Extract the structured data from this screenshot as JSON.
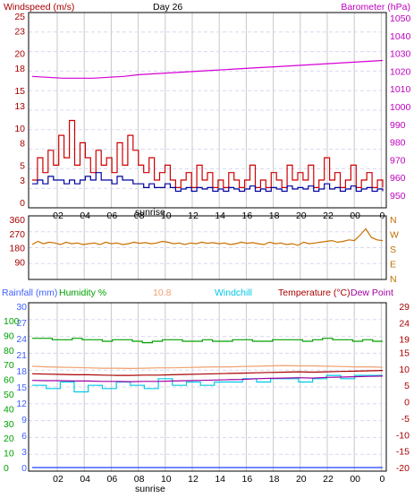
{
  "chart_data": [
    {
      "type": "line",
      "title": "Day 26",
      "left_axis": {
        "label": "Windspeed (m/s)",
        "color": "#a80000",
        "min": 0,
        "max": 25,
        "ticks": [
          0,
          3,
          5,
          8,
          10,
          13,
          15,
          18,
          20,
          23,
          25
        ]
      },
      "right_axis": {
        "label": "Barometer (hPa)",
        "color": "#c000c0",
        "min": 950,
        "max": 1050,
        "ticks": [
          950,
          960,
          970,
          980,
          990,
          1000,
          1010,
          1020,
          1030,
          1040,
          1050
        ]
      },
      "x_ticks": [
        "02",
        "04",
        "06",
        "08",
        "10",
        "12",
        "14",
        "16",
        "18",
        "20",
        "22",
        "00",
        "0"
      ],
      "x_annotation": "sunrise",
      "series": [
        {
          "color": "#cc0000",
          "values": [
            3,
            6,
            4,
            7,
            5,
            9,
            6,
            11,
            5,
            8,
            6,
            4,
            7,
            5,
            6,
            4,
            8,
            5,
            9,
            7,
            5,
            4,
            6,
            3,
            4,
            5,
            3,
            2,
            3,
            4,
            2,
            5,
            3,
            4,
            2,
            3,
            2,
            4,
            3,
            2,
            3,
            5,
            2,
            3,
            2,
            4,
            3,
            2,
            5,
            3,
            4,
            3,
            5,
            2,
            3,
            6,
            3,
            4,
            2,
            3,
            5,
            2,
            3,
            4,
            2,
            3,
            2
          ]
        },
        {
          "color": "#0000a0",
          "values": [
            2.5,
            3,
            2.5,
            3.5,
            3,
            3,
            2.5,
            3,
            2.5,
            3,
            3.5,
            3,
            4,
            3,
            3,
            2.5,
            3.5,
            3,
            3,
            2.5,
            2.5,
            2,
            2.5,
            2,
            2,
            2.5,
            2,
            1.5,
            1.8,
            2,
            1.5,
            2,
            1.8,
            2,
            1.5,
            1.8,
            1.5,
            2,
            1.8,
            1.5,
            1.8,
            2.2,
            1.5,
            1.8,
            1.5,
            2,
            1.8,
            1.5,
            2.2,
            1.8,
            2,
            1.8,
            2.2,
            1.5,
            1.8,
            2.5,
            1.8,
            2,
            1.5,
            1.8,
            2.2,
            1.5,
            1.8,
            2,
            1.5,
            1.8,
            1.5
          ]
        },
        {
          "color": "#d400d4",
          "axis": "right",
          "values": [
            1017,
            1016.5,
            1016,
            1016,
            1016,
            1016.5,
            1017,
            1018,
            1018.5,
            1019,
            1019.5,
            1020,
            1020.5,
            1021,
            1021.5,
            1022,
            1022.5,
            1023,
            1023.5,
            1024,
            1024.5,
            1025,
            1025.5,
            1026
          ]
        }
      ]
    },
    {
      "type": "line",
      "left_axis": {
        "min": 0,
        "max": 360,
        "ticks": [
          90,
          180,
          270,
          360
        ]
      },
      "right_axis": {
        "labels": [
          "N",
          "W",
          "S",
          "E",
          "N"
        ],
        "color": "#c07000"
      },
      "series": [
        {
          "color": "#c87000",
          "values": [
            200,
            220,
            205,
            215,
            210,
            200,
            215,
            205,
            210,
            200,
            205,
            210,
            200,
            215,
            205,
            210,
            200,
            205,
            215,
            208,
            212,
            205,
            210,
            220,
            215,
            205,
            210,
            200,
            210,
            205,
            215,
            208,
            212,
            205,
            210,
            200,
            205,
            215,
            208,
            212,
            205,
            200,
            215,
            205,
            210,
            200,
            205,
            195,
            215,
            205,
            210,
            215,
            220,
            225,
            215,
            220,
            230,
            225,
            260,
            300,
            245,
            230,
            225
          ]
        }
      ]
    },
    {
      "type": "line",
      "headers": [
        {
          "text": "Rainfall (mm)",
          "color": "#4060ff"
        },
        {
          "text": "Humidity %",
          "color": "#00a000"
        },
        {
          "text": "10.8",
          "color": "#f0a070"
        },
        {
          "text": "Windchill",
          "color": "#00c8e8"
        },
        {
          "text": "Temperature (°C)",
          "color": "#a80000"
        },
        {
          "text": "Dew Point",
          "color": "#a000a0"
        }
      ],
      "rain_ticks": [
        0,
        3,
        6,
        9,
        12,
        15,
        18,
        21,
        24,
        27,
        30
      ],
      "humidity_ticks": [
        0,
        10,
        20,
        30,
        40,
        50,
        60,
        70,
        80,
        90,
        100
      ],
      "temp_ticks": [
        -20,
        -15,
        -10,
        -5,
        0,
        5,
        10,
        15,
        19,
        24,
        29
      ],
      "series": [
        {
          "name": "Humidity %",
          "color": "#00a000",
          "axis": "humidity",
          "values": [
            88,
            88,
            87,
            87,
            88,
            87,
            87,
            86,
            87,
            87,
            86,
            85,
            86,
            87,
            87,
            86,
            86,
            87,
            86,
            86,
            87,
            87,
            86,
            86,
            87,
            87,
            87,
            86,
            87,
            88,
            87,
            87,
            86,
            87,
            86,
            86
          ]
        },
        {
          "color": "#f0a070",
          "axis": "temp",
          "values": [
            10.8,
            10.6,
            10.5,
            10.4,
            10.3,
            10.2,
            10.2,
            10.1,
            10.2,
            10.3,
            10.3,
            10.4,
            10.5,
            10.6,
            10.6,
            10.7,
            10.8,
            10.9,
            11,
            10.9,
            10.9,
            10.8,
            10.7,
            10.6,
            10.6,
            10.5
          ]
        },
        {
          "name": "Temperature (°C)",
          "color": "#a80000",
          "axis": "temp",
          "values": [
            8.5,
            8.4,
            8.3,
            8.2,
            8.2,
            8.1,
            8,
            8,
            8.1,
            8.1,
            8.2,
            8.3,
            8.4,
            8.5,
            8.6,
            8.7,
            8.8,
            8.9,
            9,
            9.1,
            9,
            9.1,
            9.2,
            9.3,
            9.4,
            9.5
          ]
        },
        {
          "name": "Windchill",
          "color": "#00c8e8",
          "axis": "temp",
          "values": [
            5,
            4,
            6,
            3,
            5,
            4,
            6,
            5,
            4,
            7,
            5,
            6,
            5,
            6,
            6,
            7,
            6,
            7,
            7,
            6,
            7,
            8,
            7,
            8,
            8,
            8
          ]
        },
        {
          "name": "Dew Point",
          "color": "#a000a0",
          "axis": "temp",
          "values": [
            6.5,
            6.4,
            6.4,
            6.3,
            6.3,
            6.2,
            6.2,
            6.1,
            6.2,
            6.2,
            6.3,
            6.4,
            6.5,
            6.6,
            6.7,
            6.8,
            7,
            7.1,
            7.2,
            7.3,
            7.2,
            7.4,
            7.5,
            7.6,
            7.7,
            7.8
          ]
        },
        {
          "name": "Rainfall (mm)",
          "color": "#2040ff",
          "axis": "rain",
          "values": [
            0,
            0,
            0,
            0,
            0,
            0,
            0,
            0,
            0,
            0,
            0,
            0,
            0,
            0,
            0,
            0,
            0,
            0,
            0,
            0,
            0,
            0,
            0,
            0,
            0,
            0
          ]
        }
      ]
    }
  ]
}
